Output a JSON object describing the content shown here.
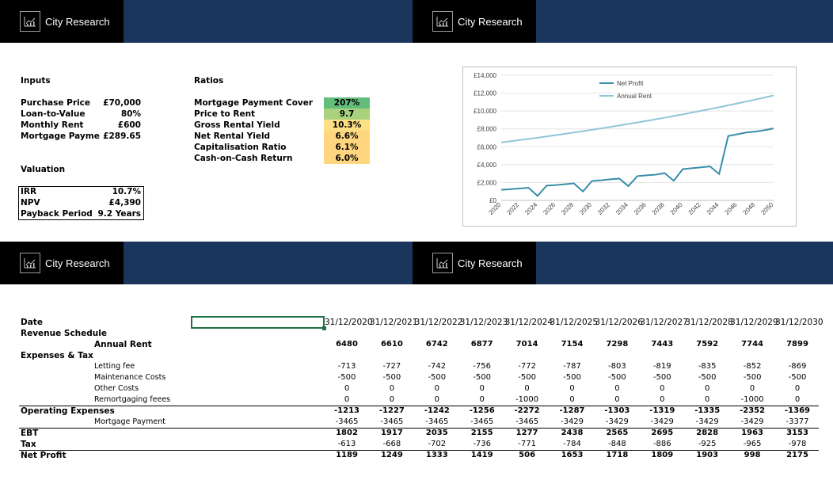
{
  "brand": {
    "name": "City Research"
  },
  "inputs": {
    "heading": "Inputs",
    "rows": [
      {
        "label": "Purchase Price",
        "value": "£70,000"
      },
      {
        "label": "Loan-to-Value",
        "value": "80%"
      },
      {
        "label": "Monthly Rent",
        "value": "£600"
      },
      {
        "label": "Mortgage Payme",
        "value": "£289.65"
      }
    ]
  },
  "valuation": {
    "heading": "Valuation",
    "rows": [
      {
        "label": "IRR",
        "value": "10.7%"
      },
      {
        "label": "NPV",
        "value": "£4,390"
      },
      {
        "label": "Payback Period",
        "value": "9.2 Years"
      }
    ]
  },
  "ratios": {
    "heading": "Ratios",
    "rows": [
      {
        "label": "Mortgage Payment Cover",
        "value": "207%",
        "color": "#63be7b"
      },
      {
        "label": "Price to Rent",
        "value": "9.7",
        "color": "#a9d27f"
      },
      {
        "label": "Gross Rental Yield",
        "value": "10.3%",
        "color": "#fde083"
      },
      {
        "label": "Net Rental Yield",
        "value": "6.6%",
        "color": "#fed680"
      },
      {
        "label": "Capitalisation Ratio",
        "value": "6.1%",
        "color": "#fed680"
      },
      {
        "label": "Cash-on-Cash Return",
        "value": "6.0%",
        "color": "#fed680"
      }
    ]
  },
  "chart_data": {
    "type": "line",
    "x": [
      2020,
      2021,
      2022,
      2023,
      2024,
      2025,
      2026,
      2027,
      2028,
      2029,
      2030,
      2031,
      2032,
      2033,
      2034,
      2035,
      2036,
      2037,
      2038,
      2039,
      2040,
      2041,
      2042,
      2043,
      2044,
      2045,
      2046,
      2047,
      2048,
      2049,
      2050
    ],
    "xticks": [
      "2020",
      "2022",
      "2024",
      "2026",
      "2028",
      "2030",
      "2032",
      "2034",
      "2036",
      "2038",
      "2040",
      "2042",
      "2044",
      "2046",
      "2048",
      "2050"
    ],
    "yticks": [
      "£0",
      "£2,000",
      "£4,000",
      "£6,000",
      "£8,000",
      "£10,000",
      "£12,000",
      "£14,000"
    ],
    "ylim": [
      0,
      14000
    ],
    "series": [
      {
        "name": "Net Profit",
        "color": "#3a8ea8",
        "values": [
          1189,
          1249,
          1333,
          1419,
          506,
          1653,
          1718,
          1809,
          1903,
          998,
          2175,
          2250,
          2360,
          2440,
          1600,
          2720,
          2800,
          2880,
          3050,
          2200,
          3500,
          3600,
          3700,
          3800,
          2950,
          7200,
          7400,
          7600,
          7700,
          7850,
          8050
        ]
      },
      {
        "name": "Annual Rent",
        "color": "#8fc6d6",
        "values": [
          6480,
          6610,
          6742,
          6877,
          7014,
          7154,
          7298,
          7443,
          7592,
          7744,
          7899,
          8057,
          8218,
          8382,
          8550,
          8721,
          8895,
          9073,
          9255,
          9440,
          9629,
          9821,
          10018,
          10218,
          10423,
          10631,
          10844,
          11061,
          11282,
          11508,
          11738
        ]
      }
    ]
  },
  "schedule": {
    "date_label": "Date",
    "revenue_label": "Revenue Schedule",
    "annual_rent_label": "Annual Rent",
    "expenses_label": "Expenses & Tax",
    "letting_label": "Letting fee",
    "maintenance_label": "Maintenance Costs",
    "other_label": "Other Costs",
    "remortgage_label": "Remortgaging feees",
    "opex_label": "Operating Expenses",
    "mortgage_label": "Mortgage Payment",
    "ebt_label": "EBT",
    "tax_label": "Tax",
    "net_label": "Net Profit",
    "dates": [
      "31/12/2020",
      "31/12/2021",
      "31/12/2022",
      "31/12/2023",
      "31/12/2024",
      "31/12/2025",
      "31/12/2026",
      "31/12/2027",
      "31/12/2028",
      "31/12/2029",
      "31/12/2030"
    ],
    "annual_rent": [
      "6480",
      "6610",
      "6742",
      "6877",
      "7014",
      "7154",
      "7298",
      "7443",
      "7592",
      "7744",
      "7899"
    ],
    "letting": [
      "-713",
      "-727",
      "-742",
      "-756",
      "-772",
      "-787",
      "-803",
      "-819",
      "-835",
      "-852",
      "-869"
    ],
    "maintenance": [
      "-500",
      "-500",
      "-500",
      "-500",
      "-500",
      "-500",
      "-500",
      "-500",
      "-500",
      "-500",
      "-500"
    ],
    "other": [
      "0",
      "0",
      "0",
      "0",
      "0",
      "0",
      "0",
      "0",
      "0",
      "0",
      "0"
    ],
    "remortgage": [
      "0",
      "0",
      "0",
      "0",
      "-1000",
      "0",
      "0",
      "0",
      "0",
      "-1000",
      "0"
    ],
    "opex": [
      "-1213",
      "-1227",
      "-1242",
      "-1256",
      "-2272",
      "-1287",
      "-1303",
      "-1319",
      "-1335",
      "-2352",
      "-1369"
    ],
    "mortgage": [
      "-3465",
      "-3465",
      "-3465",
      "-3465",
      "-3465",
      "-3429",
      "-3429",
      "-3429",
      "-3429",
      "-3429",
      "-3377"
    ],
    "ebt": [
      "1802",
      "1917",
      "2035",
      "2155",
      "1277",
      "2438",
      "2565",
      "2695",
      "2828",
      "1963",
      "3153"
    ],
    "tax": [
      "-613",
      "-668",
      "-702",
      "-736",
      "-771",
      "-784",
      "-848",
      "-886",
      "-925",
      "-965",
      "-978"
    ],
    "net": [
      "1189",
      "1249",
      "1333",
      "1419",
      "506",
      "1653",
      "1718",
      "1809",
      "1903",
      "998",
      "2175"
    ]
  }
}
